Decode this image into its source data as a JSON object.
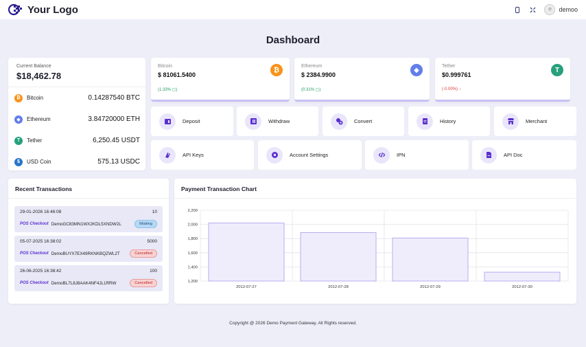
{
  "header": {
    "logo_text": "Your Logo",
    "user_name": "demoo"
  },
  "page_title": "Dashboard",
  "balance": {
    "label": "Current Balance",
    "value": "$18,462.78",
    "coins": [
      {
        "name": "Bitcoin",
        "amount": "0.14287540 BTC",
        "icon": "bitcoin-icon",
        "color": "#f7931a",
        "glyph": "₿"
      },
      {
        "name": "Ethereum",
        "amount": "3.84720000 ETH",
        "icon": "ethereum-icon",
        "color": "#627eea",
        "glyph": "◆"
      },
      {
        "name": "Tether",
        "amount": "6,250.45 USDT",
        "icon": "tether-icon",
        "color": "#26a17b",
        "glyph": "T"
      },
      {
        "name": "USD Coin",
        "amount": "575.13 USDC",
        "icon": "usdc-icon",
        "color": "#2775ca",
        "glyph": "$"
      }
    ]
  },
  "prices": [
    {
      "name": "Bitcoin",
      "price": "$ 81061.5400",
      "change": "(1.33% ▢)",
      "change_color": "#1a9d5b",
      "icon": "bitcoin-icon",
      "color": "#f7931a",
      "glyph": "₿"
    },
    {
      "name": "Ethereum",
      "price": "$ 2384.9900",
      "change": "(0.31% ▢)",
      "change_color": "#1a9d5b",
      "icon": "ethereum-icon",
      "color": "#627eea",
      "glyph": "◆"
    },
    {
      "name": "Tether",
      "price": "$0.999761",
      "change": "(-0.00%) ↓",
      "change_color": "#d93b3b",
      "icon": "tether-icon",
      "color": "#26a17b",
      "glyph": "T"
    }
  ],
  "actions": [
    {
      "label": "Deposit",
      "icon": "deposit-icon"
    },
    {
      "label": "Withdraw",
      "icon": "withdraw-icon"
    },
    {
      "label": "Convert",
      "icon": "convert-icon"
    },
    {
      "label": "History",
      "icon": "history-icon"
    },
    {
      "label": "Merchant",
      "icon": "merchant-icon"
    },
    {
      "label": "API Keys",
      "icon": "api-keys-icon"
    },
    {
      "label": "Account Settings",
      "icon": "settings-icon"
    },
    {
      "label": "IPN",
      "icon": "code-icon"
    },
    {
      "label": "API Doc",
      "icon": "document-icon"
    }
  ],
  "transactions": {
    "title": "Recent Transactions",
    "items": [
      {
        "date": "29-01-2026 16:46:08",
        "amount": "10",
        "type": "POS Checkout",
        "id": "DemoGC83MN1WX2KDL5XNDW2L",
        "status": "Waiting",
        "status_kind": "wait"
      },
      {
        "date": "05-07-2025 16:38:02",
        "amount": "5000",
        "type": "POS Checkout",
        "id": "DemoBUYX7EX49RKNKBQZWL2T",
        "status": "Cancelled",
        "status_kind": "cancel"
      },
      {
        "date": "26-06-2025 16:38:42",
        "amount": "100",
        "type": "POS Checkout",
        "id": "DemoBL7L8J8AAK4NF4JL1RRW",
        "status": "Cancelled",
        "status_kind": "cancel"
      }
    ]
  },
  "chart_title": "Payment Transaction Chart",
  "chart_data": {
    "type": "bar",
    "categories": [
      "2012-07-27",
      "2012-07-28",
      "2012-07-29",
      "2012-07-30"
    ],
    "values": [
      2020,
      1885,
      1808,
      1325
    ],
    "yticks": [
      "1,200",
      "1,400",
      "1,600",
      "1,800",
      "2,000",
      "2,200"
    ],
    "ylim": [
      1200,
      2200
    ],
    "grid": true,
    "bar_fill": "#efedfc",
    "bar_stroke": "#b9abee"
  },
  "footer": "Copyright @ 2026 Demo Payment Gateway. All Rights reserved."
}
